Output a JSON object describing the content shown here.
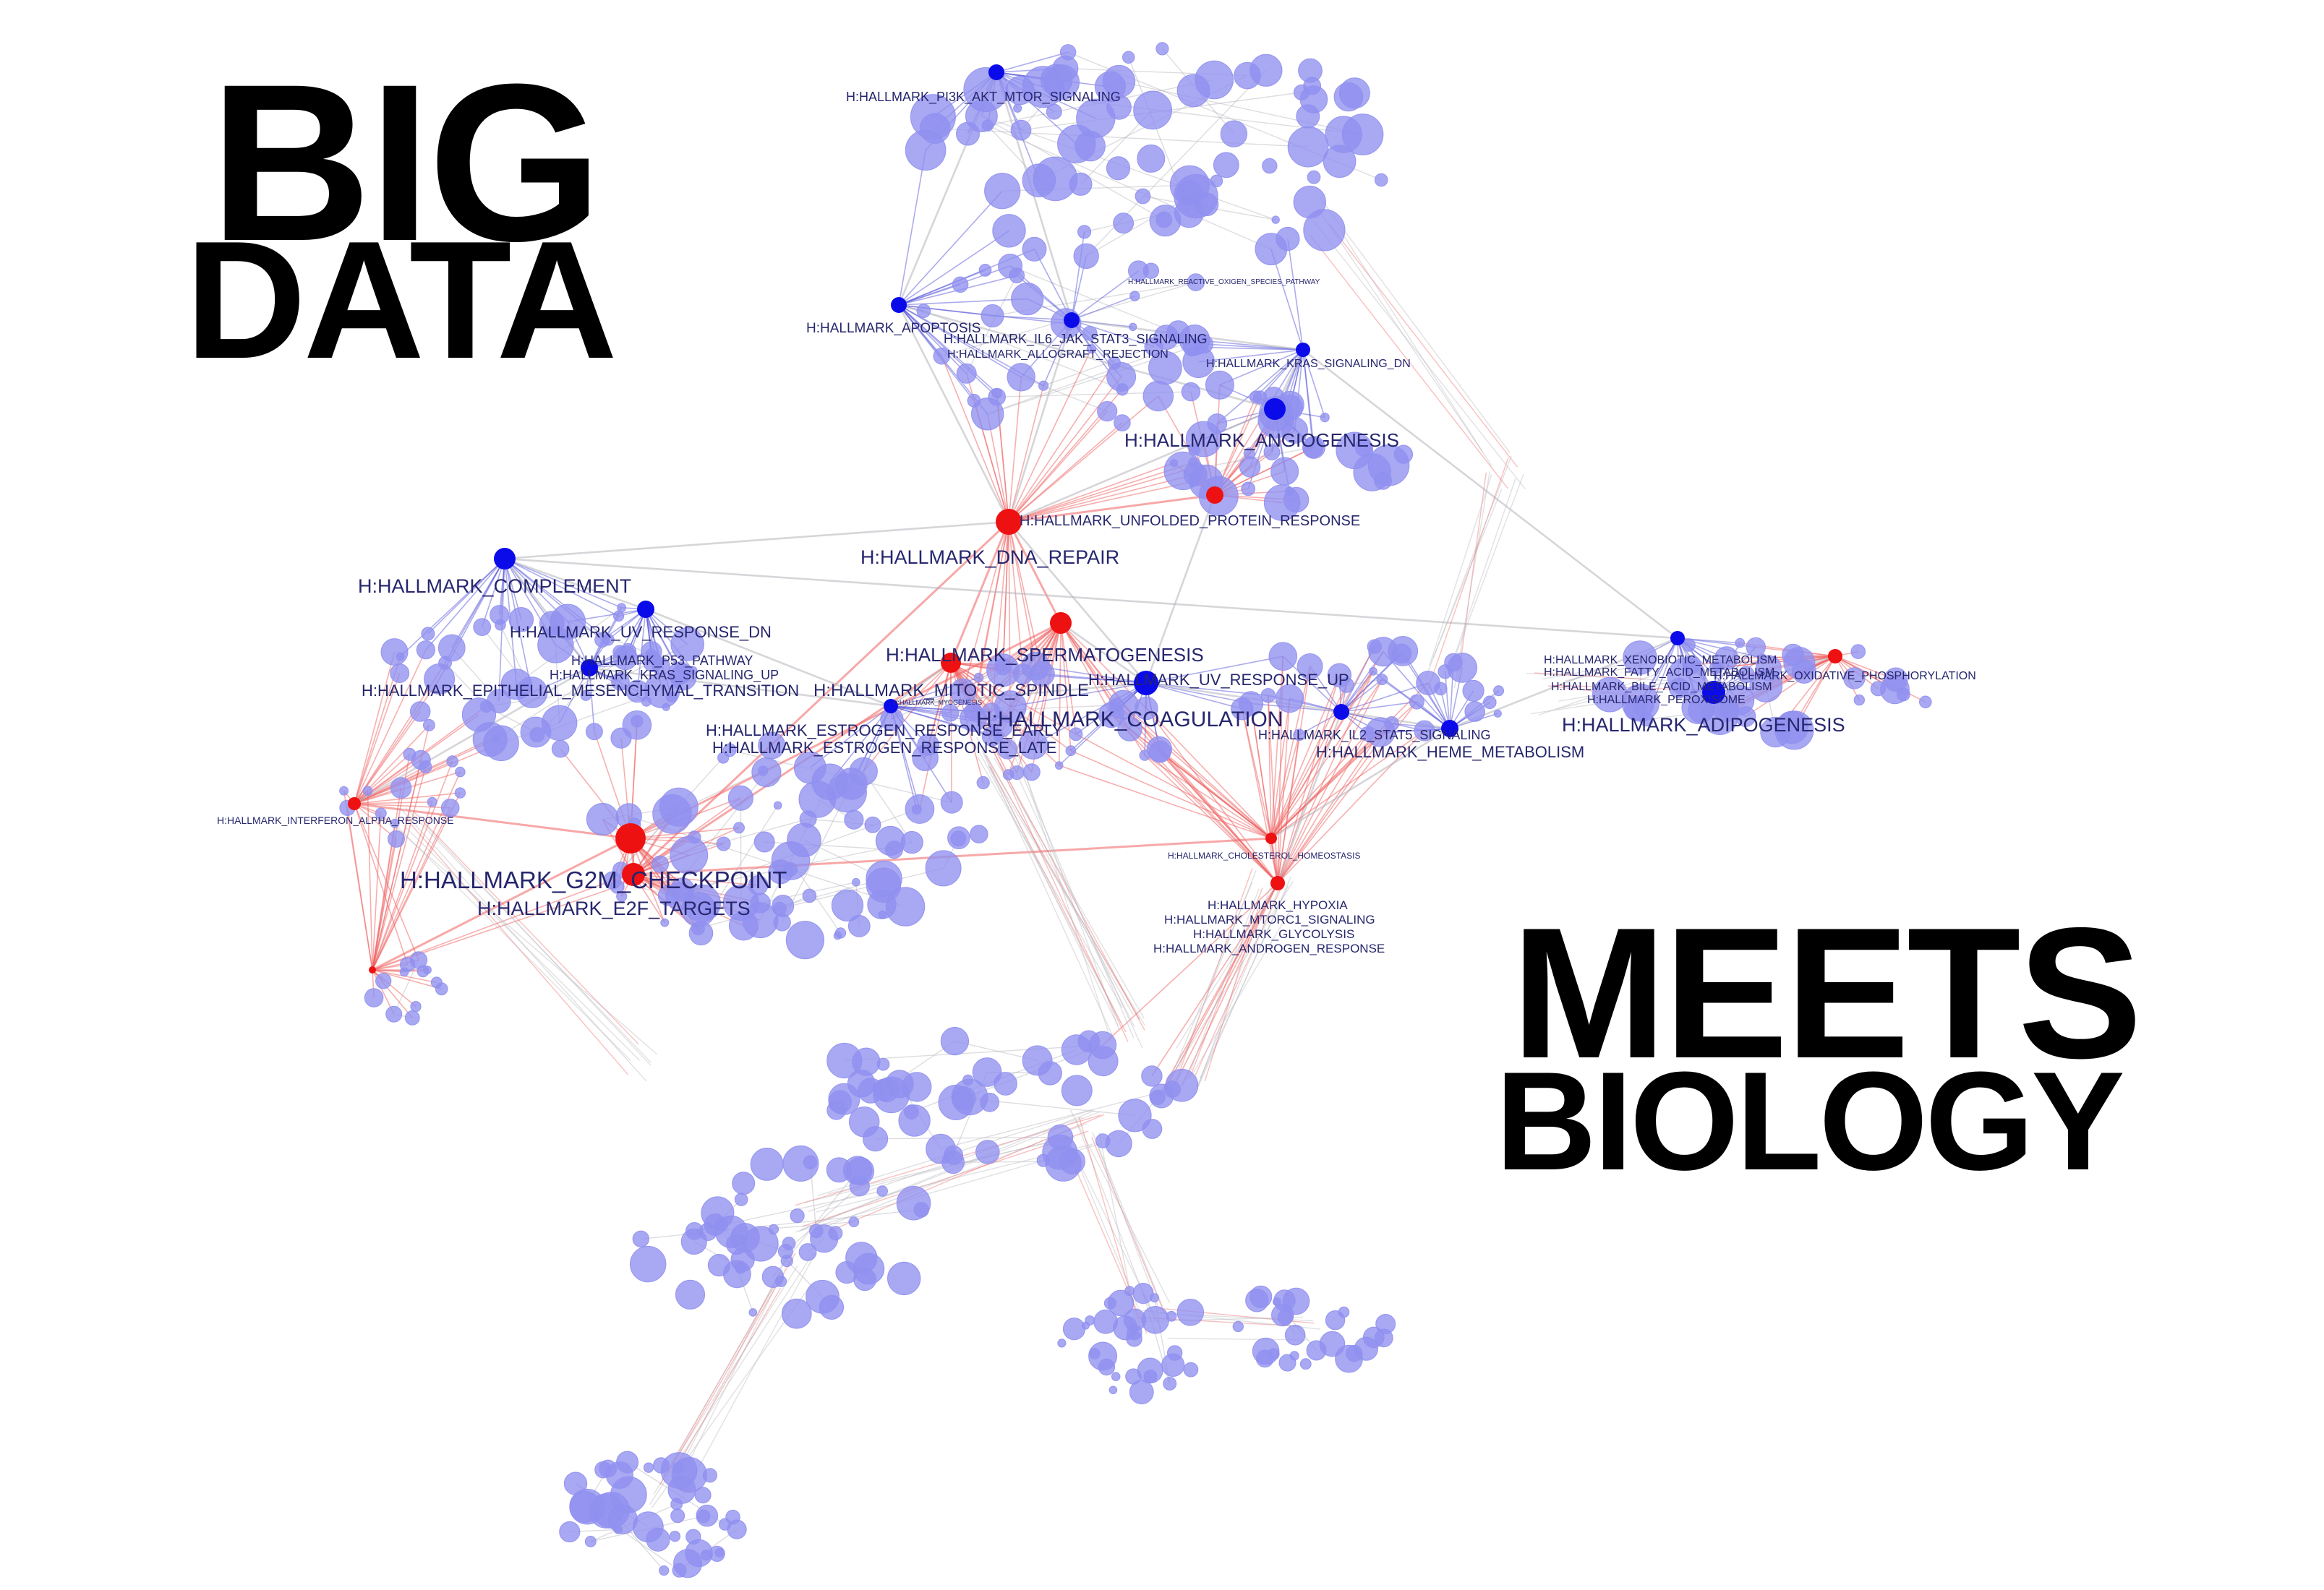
{
  "headline": {
    "line1": "BIG",
    "line2": "DATA",
    "line3": "MEETS",
    "line4": "BIOLOGY"
  },
  "colors": {
    "background": "#ffffff",
    "headline_text": "#000000",
    "hub_node_blue": "#0b0bea",
    "hub_node_red": "#ee1111",
    "member_node": "#8f8ff0",
    "edge_gray": "#b4b4bc",
    "edge_red": "#f06060",
    "edge_blue": "#4848d8",
    "label_text": "#26266e"
  },
  "network": {
    "labels": [
      "H:HALLMARK_PI3K_AKT_MTOR_SIGNALING",
      "H:HALLMARK_REACTIVE_OXIGEN_SPECIES_PATHWAY",
      "H:HALLMARK_APOPTOSIS",
      "H:HALLMARK_IL6_JAK_STAT3_SIGNALING",
      "H:HALLMARK_ALLOGRAFT_REJECTION",
      "H:HALLMARK_KRAS_SIGNALING_DN",
      "H:HALLMARK_ANGIOGENESIS",
      "H:HALLMARK_UNFOLDED_PROTEIN_RESPONSE",
      "H:HALLMARK_DNA_REPAIR",
      "H:HALLMARK_COMPLEMENT",
      "H:HALLMARK_UV_RESPONSE_DN",
      "H:HALLMARK_P53_PATHWAY",
      "H:HALLMARK_KRAS_SIGNALING_UP",
      "H:HALLMARK_EPITHELIAL_MESENCHYMAL_TRANSITION",
      "H:HALLMARK_SPERMATOGENESIS",
      "H:HALLMARK_MITOTIC_SPINDLE",
      "H:HALLMARK_MYOGENESIS",
      "H:HALLMARK_UV_RESPONSE_UP",
      "H:HALLMARK_COAGULATION",
      "H:HALLMARK_IL2_STAT5_SIGNALING",
      "H:HALLMARK_HEME_METABOLISM",
      "H:HALLMARK_ESTROGEN_RESPONSE_EARLY",
      "H:HALLMARK_ESTROGEN_RESPONSE_LATE",
      "H:HALLMARK_XENOBIOTIC_METABOLISM",
      "H:HALLMARK_FATTY_ACID_METABOLISM",
      "H:HALLMARK_OXIDATIVE_PHOSPHORYLATION",
      "H:HALLMARK_BILE_ACID_METABOLISM",
      "H:HALLMARK_PEROXISOME",
      "H:HALLMARK_ADIPOGENESIS",
      "H:HALLMARK_INTERFERON_ALPHA_RESPONSE",
      "H:HALLMARK_CHOLESTEROL_HOMEOSTASIS",
      "H:HALLMARK_G2M_CHECKPOINT",
      "H:HALLMARK_E2F_TARGETS",
      "H:HALLMARK_HYPOXIA",
      "H:HALLMARK_MTORC1_SIGNALING",
      "H:HALLMARK_GLYCOLYSIS",
      "H:HALLMARK_ANDROGEN_RESPONSE"
    ]
  }
}
